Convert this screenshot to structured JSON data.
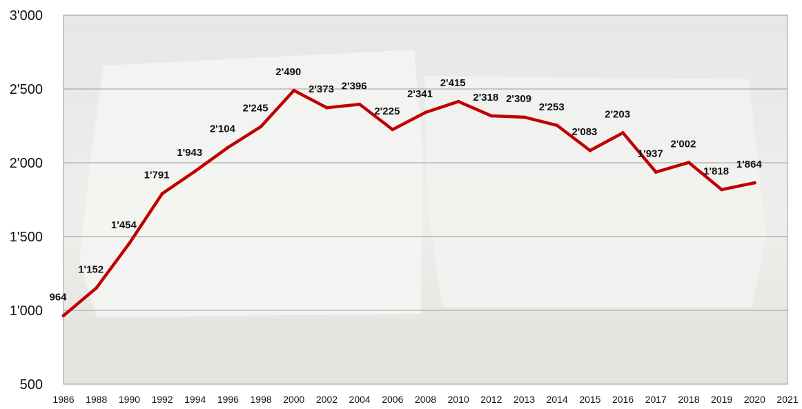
{
  "chart_data": {
    "type": "line",
    "title": "",
    "xlabel": "",
    "ylabel": "",
    "ylim": [
      500,
      3000
    ],
    "yticks": [
      "500",
      "1'000",
      "1'500",
      "2'000",
      "2'500",
      "3'000"
    ],
    "ytick_values": [
      500,
      1000,
      1500,
      2000,
      2500,
      3000
    ],
    "x_ticks": [
      "1986",
      "1988",
      "1990",
      "1992",
      "1994",
      "1996",
      "1998",
      "2000",
      "2002",
      "2004",
      "2006",
      "2008",
      "2010",
      "2012",
      "2013",
      "2014",
      "2015",
      "2016",
      "2017",
      "2018",
      "2019",
      "2020",
      "2021"
    ],
    "grid": true,
    "legend": "none",
    "line_color": "#c00000",
    "plot_background": "photo of stacked newspaper bundles (faded)",
    "series": [
      {
        "points": [
          {
            "x": "1986",
            "y": 964,
            "label": "964"
          },
          {
            "x": "1988",
            "y": 1152,
            "label": "1'152"
          },
          {
            "x": "1990",
            "y": 1454,
            "label": "1'454"
          },
          {
            "x": "1992",
            "y": 1791,
            "label": "1'791"
          },
          {
            "x": "1994",
            "y": 1943,
            "label": "1'943"
          },
          {
            "x": "1996",
            "y": 2104,
            "label": "2'104"
          },
          {
            "x": "1998",
            "y": 2245,
            "label": "2'245"
          },
          {
            "x": "2000",
            "y": 2490,
            "label": "2'490"
          },
          {
            "x": "2002",
            "y": 2373,
            "label": "2'373"
          },
          {
            "x": "2004",
            "y": 2396,
            "label": "2'396"
          },
          {
            "x": "2006",
            "y": 2225,
            "label": "2'225"
          },
          {
            "x": "2008",
            "y": 2341,
            "label": "2'341"
          },
          {
            "x": "2010",
            "y": 2415,
            "label": "2'415"
          },
          {
            "x": "2012",
            "y": 2318,
            "label": "2'318"
          },
          {
            "x": "2013",
            "y": 2309,
            "label": "2'309"
          },
          {
            "x": "2014",
            "y": 2253,
            "label": "2'253"
          },
          {
            "x": "2015",
            "y": 2083,
            "label": "2'083"
          },
          {
            "x": "2016",
            "y": 2203,
            "label": "2'203"
          },
          {
            "x": "2017",
            "y": 1937,
            "label": "1'937"
          },
          {
            "x": "2018",
            "y": 2002,
            "label": "2'002"
          },
          {
            "x": "2019",
            "y": 1818,
            "label": "1'818"
          },
          {
            "x": "2020",
            "y": 1864,
            "label": "1'864"
          }
        ]
      }
    ]
  }
}
